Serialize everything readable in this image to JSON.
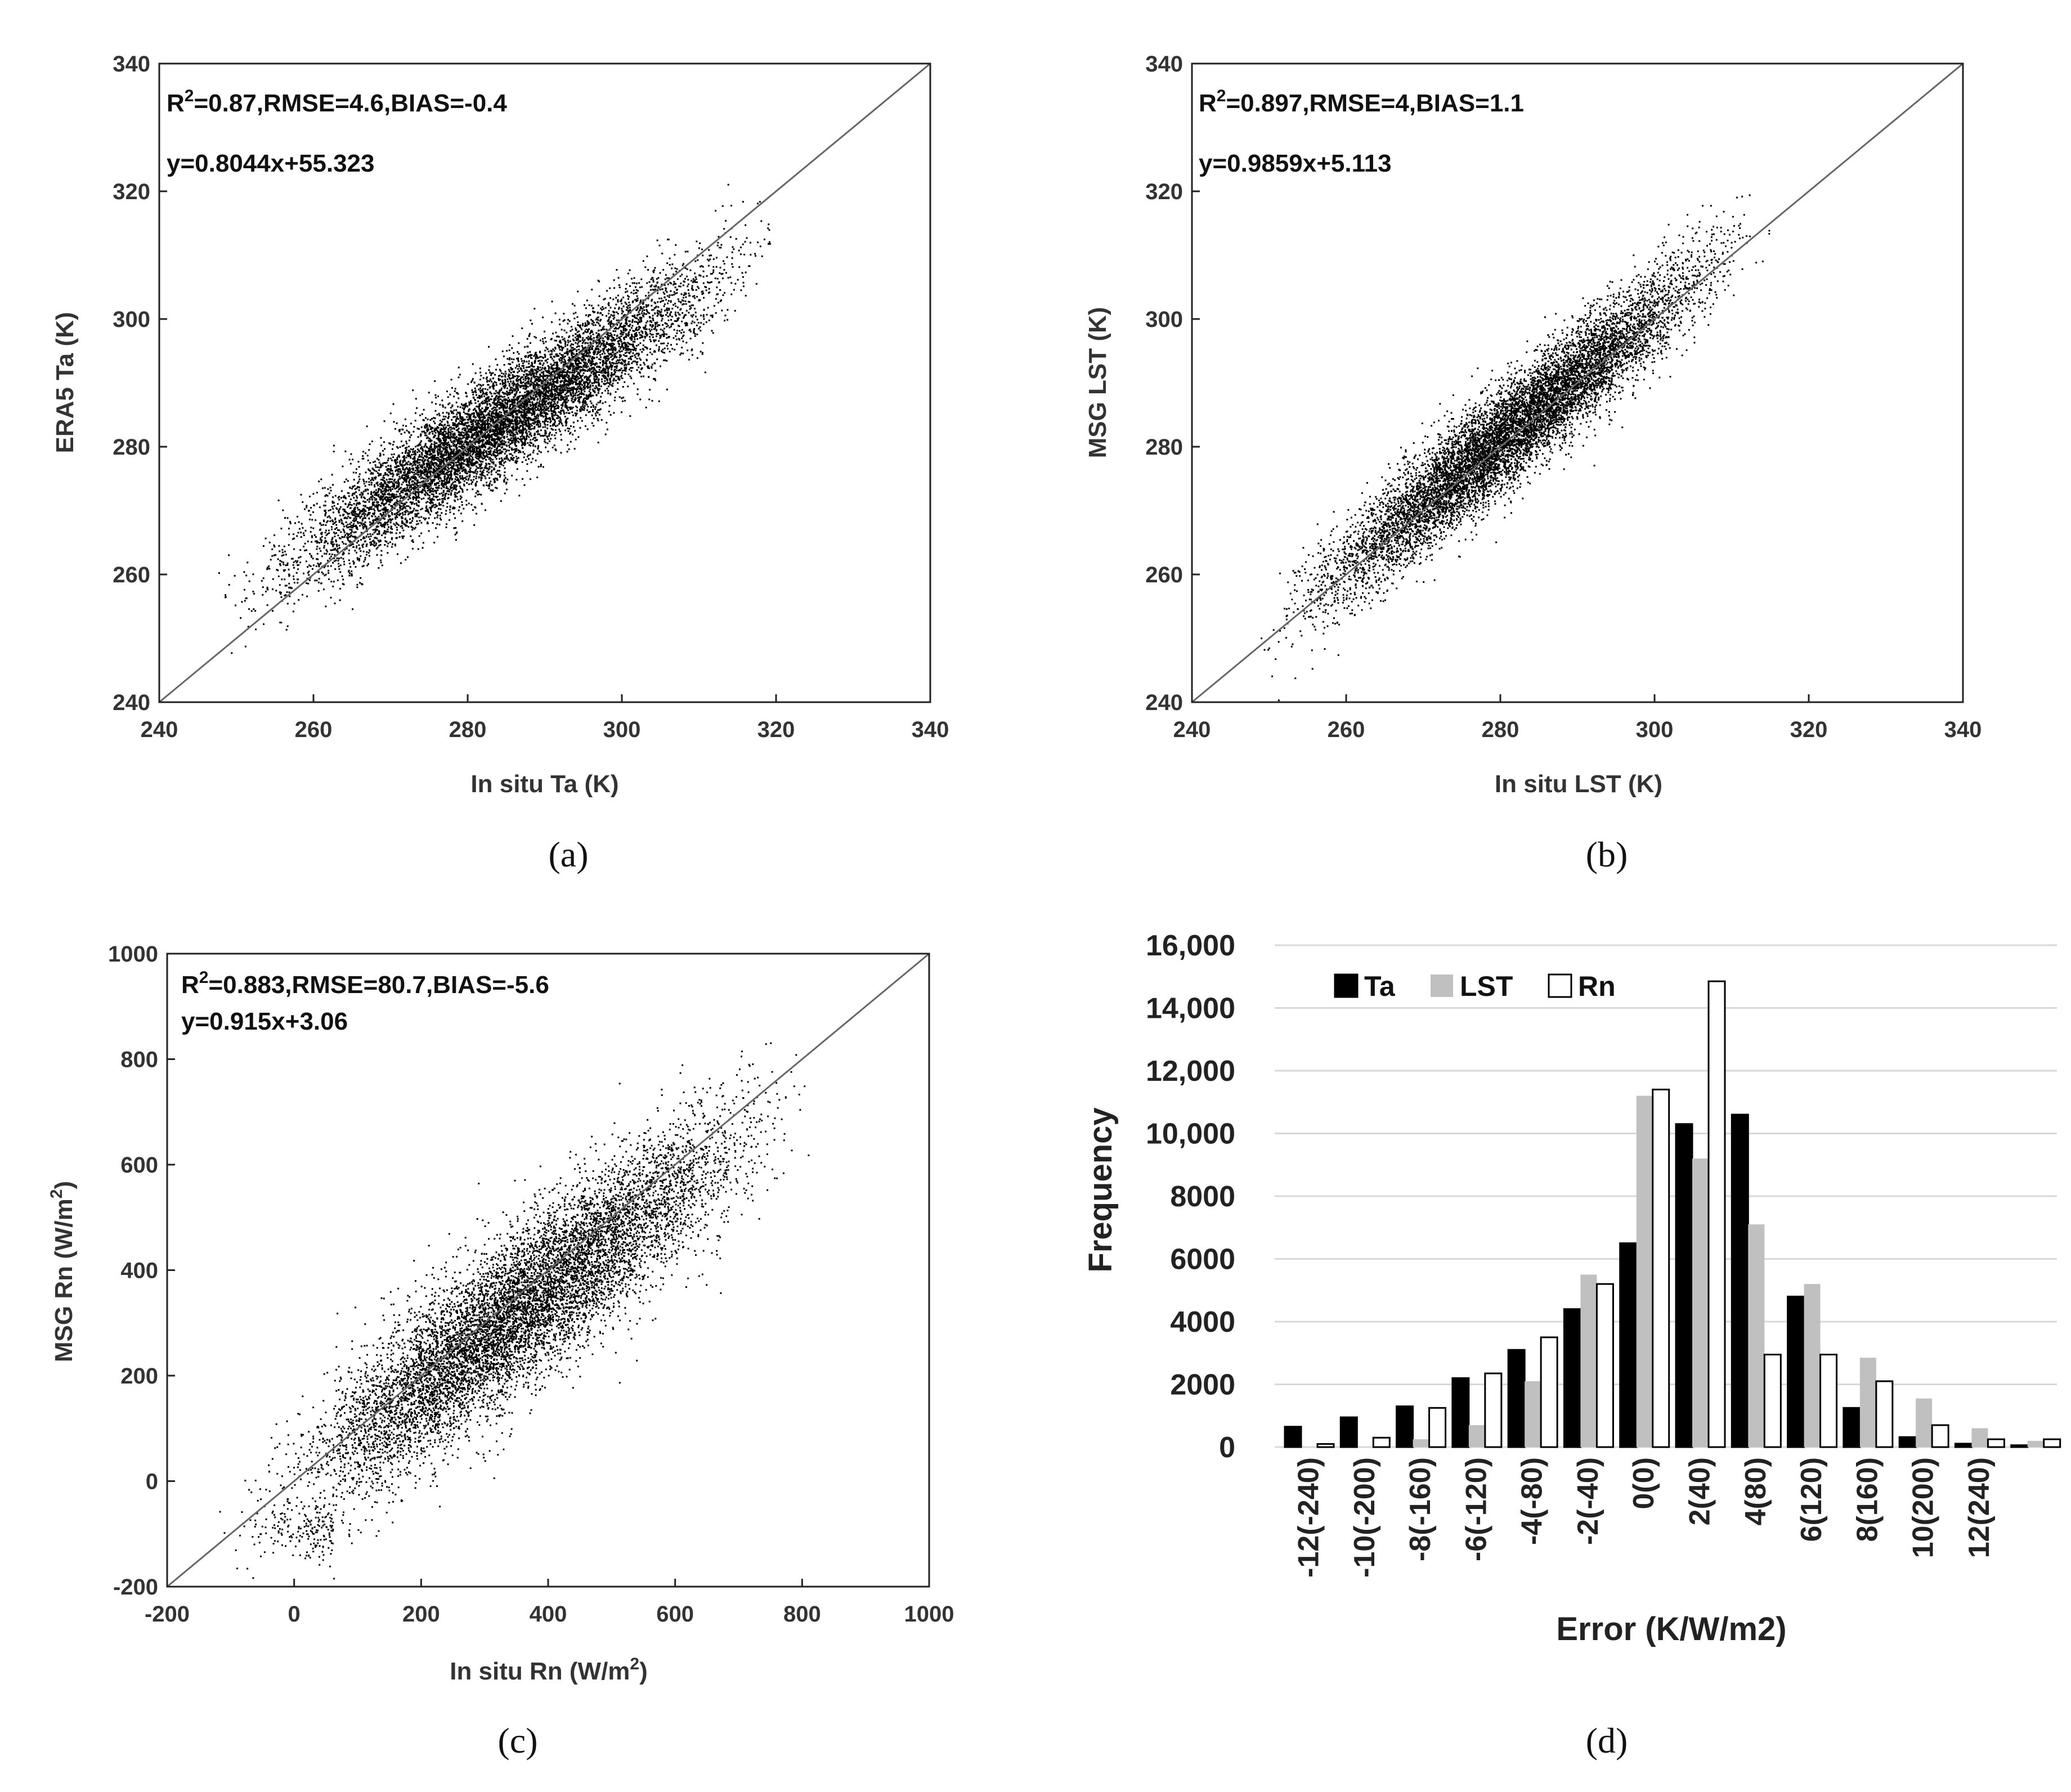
{
  "chart_data": [
    {
      "panel": "a",
      "type": "scatter",
      "panel_label": "(a)",
      "xlabel": "In situ Ta (K)",
      "ylabel": "ERA5 Ta (K)",
      "xlim": [
        240,
        340
      ],
      "ylim": [
        240,
        340
      ],
      "xticks": [
        "240",
        "260",
        "280",
        "300",
        "320",
        "340"
      ],
      "yticks": [
        "240",
        "260",
        "280",
        "300",
        "320",
        "340"
      ],
      "stats_prefix": "R",
      "stats_sup": "2",
      "stats_rest": "=0.87,RMSE=4.6,BIAS=-0.4",
      "equation": "y=0.8044x+55.323",
      "fit": {
        "slope": 0.8044,
        "intercept": 55.323
      },
      "one_to_one_line": true,
      "cloud": {
        "x_range": [
          246,
          322
        ],
        "spread": 4.2,
        "n_points": 9000
      }
    },
    {
      "panel": "b",
      "type": "scatter",
      "panel_label": "(b)",
      "xlabel": "In situ LST (K)",
      "ylabel": "MSG LST (K)",
      "xlim": [
        240,
        340
      ],
      "ylim": [
        240,
        340
      ],
      "xticks": [
        "240",
        "260",
        "280",
        "300",
        "320",
        "340"
      ],
      "yticks": [
        "240",
        "260",
        "280",
        "300",
        "320",
        "340"
      ],
      "stats_prefix": "R",
      "stats_sup": "2",
      "stats_rest": "=0.897,RMSE=4,BIAS=1.1",
      "equation": "y=0.9859x+5.113",
      "fit": {
        "slope": 0.9859,
        "intercept": 5.113
      },
      "one_to_one_line": true,
      "cloud": {
        "x_range": [
          247,
          316
        ],
        "spread": 4.0,
        "n_points": 9000
      }
    },
    {
      "panel": "c",
      "type": "scatter",
      "panel_label": "(c)",
      "xlabel_main": "In situ Rn (W/m",
      "xlabel_sup": "2",
      "xlabel_end": ")",
      "ylabel_main": "MSG Rn (W/m",
      "ylabel_sup": "2",
      "ylabel_end": ")",
      "xlim": [
        -200,
        1000
      ],
      "ylim": [
        -200,
        1000
      ],
      "xticks": [
        "-200",
        "0",
        "200",
        "400",
        "600",
        "800",
        "1000"
      ],
      "yticks": [
        "-200",
        "0",
        "200",
        "400",
        "600",
        "800",
        "1000"
      ],
      "stats_prefix": "R",
      "stats_sup": "2",
      "stats_rest": "=0.883,RMSE=80.7,BIAS=-5.6",
      "equation": "y=0.915x+3.06",
      "fit": {
        "slope": 0.915,
        "intercept": 3.06
      },
      "one_to_one_line": true,
      "cloud": {
        "x_range": [
          -140,
          840
        ],
        "spread": 75,
        "n_points": 9000
      }
    },
    {
      "panel": "d",
      "type": "bar",
      "panel_label": "(d)",
      "xlabel": "Error (K/W/m2)",
      "ylabel": "Frequency",
      "ylim": [
        0,
        16000
      ],
      "yticks": [
        "0",
        "2000",
        "4000",
        "6000",
        "8000",
        "10,000",
        "12,000",
        "14,000",
        "16,000"
      ],
      "ytick_values": [
        0,
        2000,
        4000,
        6000,
        8000,
        10000,
        12000,
        14000,
        16000
      ],
      "categories": [
        "-12(-240)",
        "-10(-200)",
        "-8(-160)",
        "-6(-120)",
        "-4(-80)",
        "-2(-40)",
        "0(0)",
        "2(40)",
        "4(80)",
        "6(120)",
        "8(160)",
        "10(200)",
        "12(240)",
        ""
      ],
      "series": [
        {
          "name": "Ta",
          "color": "#000000",
          "values": [
            650,
            950,
            1300,
            2200,
            3100,
            4400,
            6500,
            10300,
            10600,
            4800,
            1250,
            320,
            110,
            60
          ]
        },
        {
          "name": "LST",
          "color": "#c0c0c0",
          "values": [
            0,
            0,
            250,
            700,
            2100,
            5500,
            11200,
            9200,
            7100,
            5200,
            2850,
            1550,
            600,
            200
          ]
        },
        {
          "name": "Rn",
          "color": "#ffffff",
          "values": [
            100,
            300,
            1250,
            2350,
            3500,
            5200,
            11400,
            14850,
            2950,
            2950,
            2100,
            700,
            250,
            250
          ]
        }
      ],
      "legend_position": "top-left",
      "grid": true
    }
  ]
}
